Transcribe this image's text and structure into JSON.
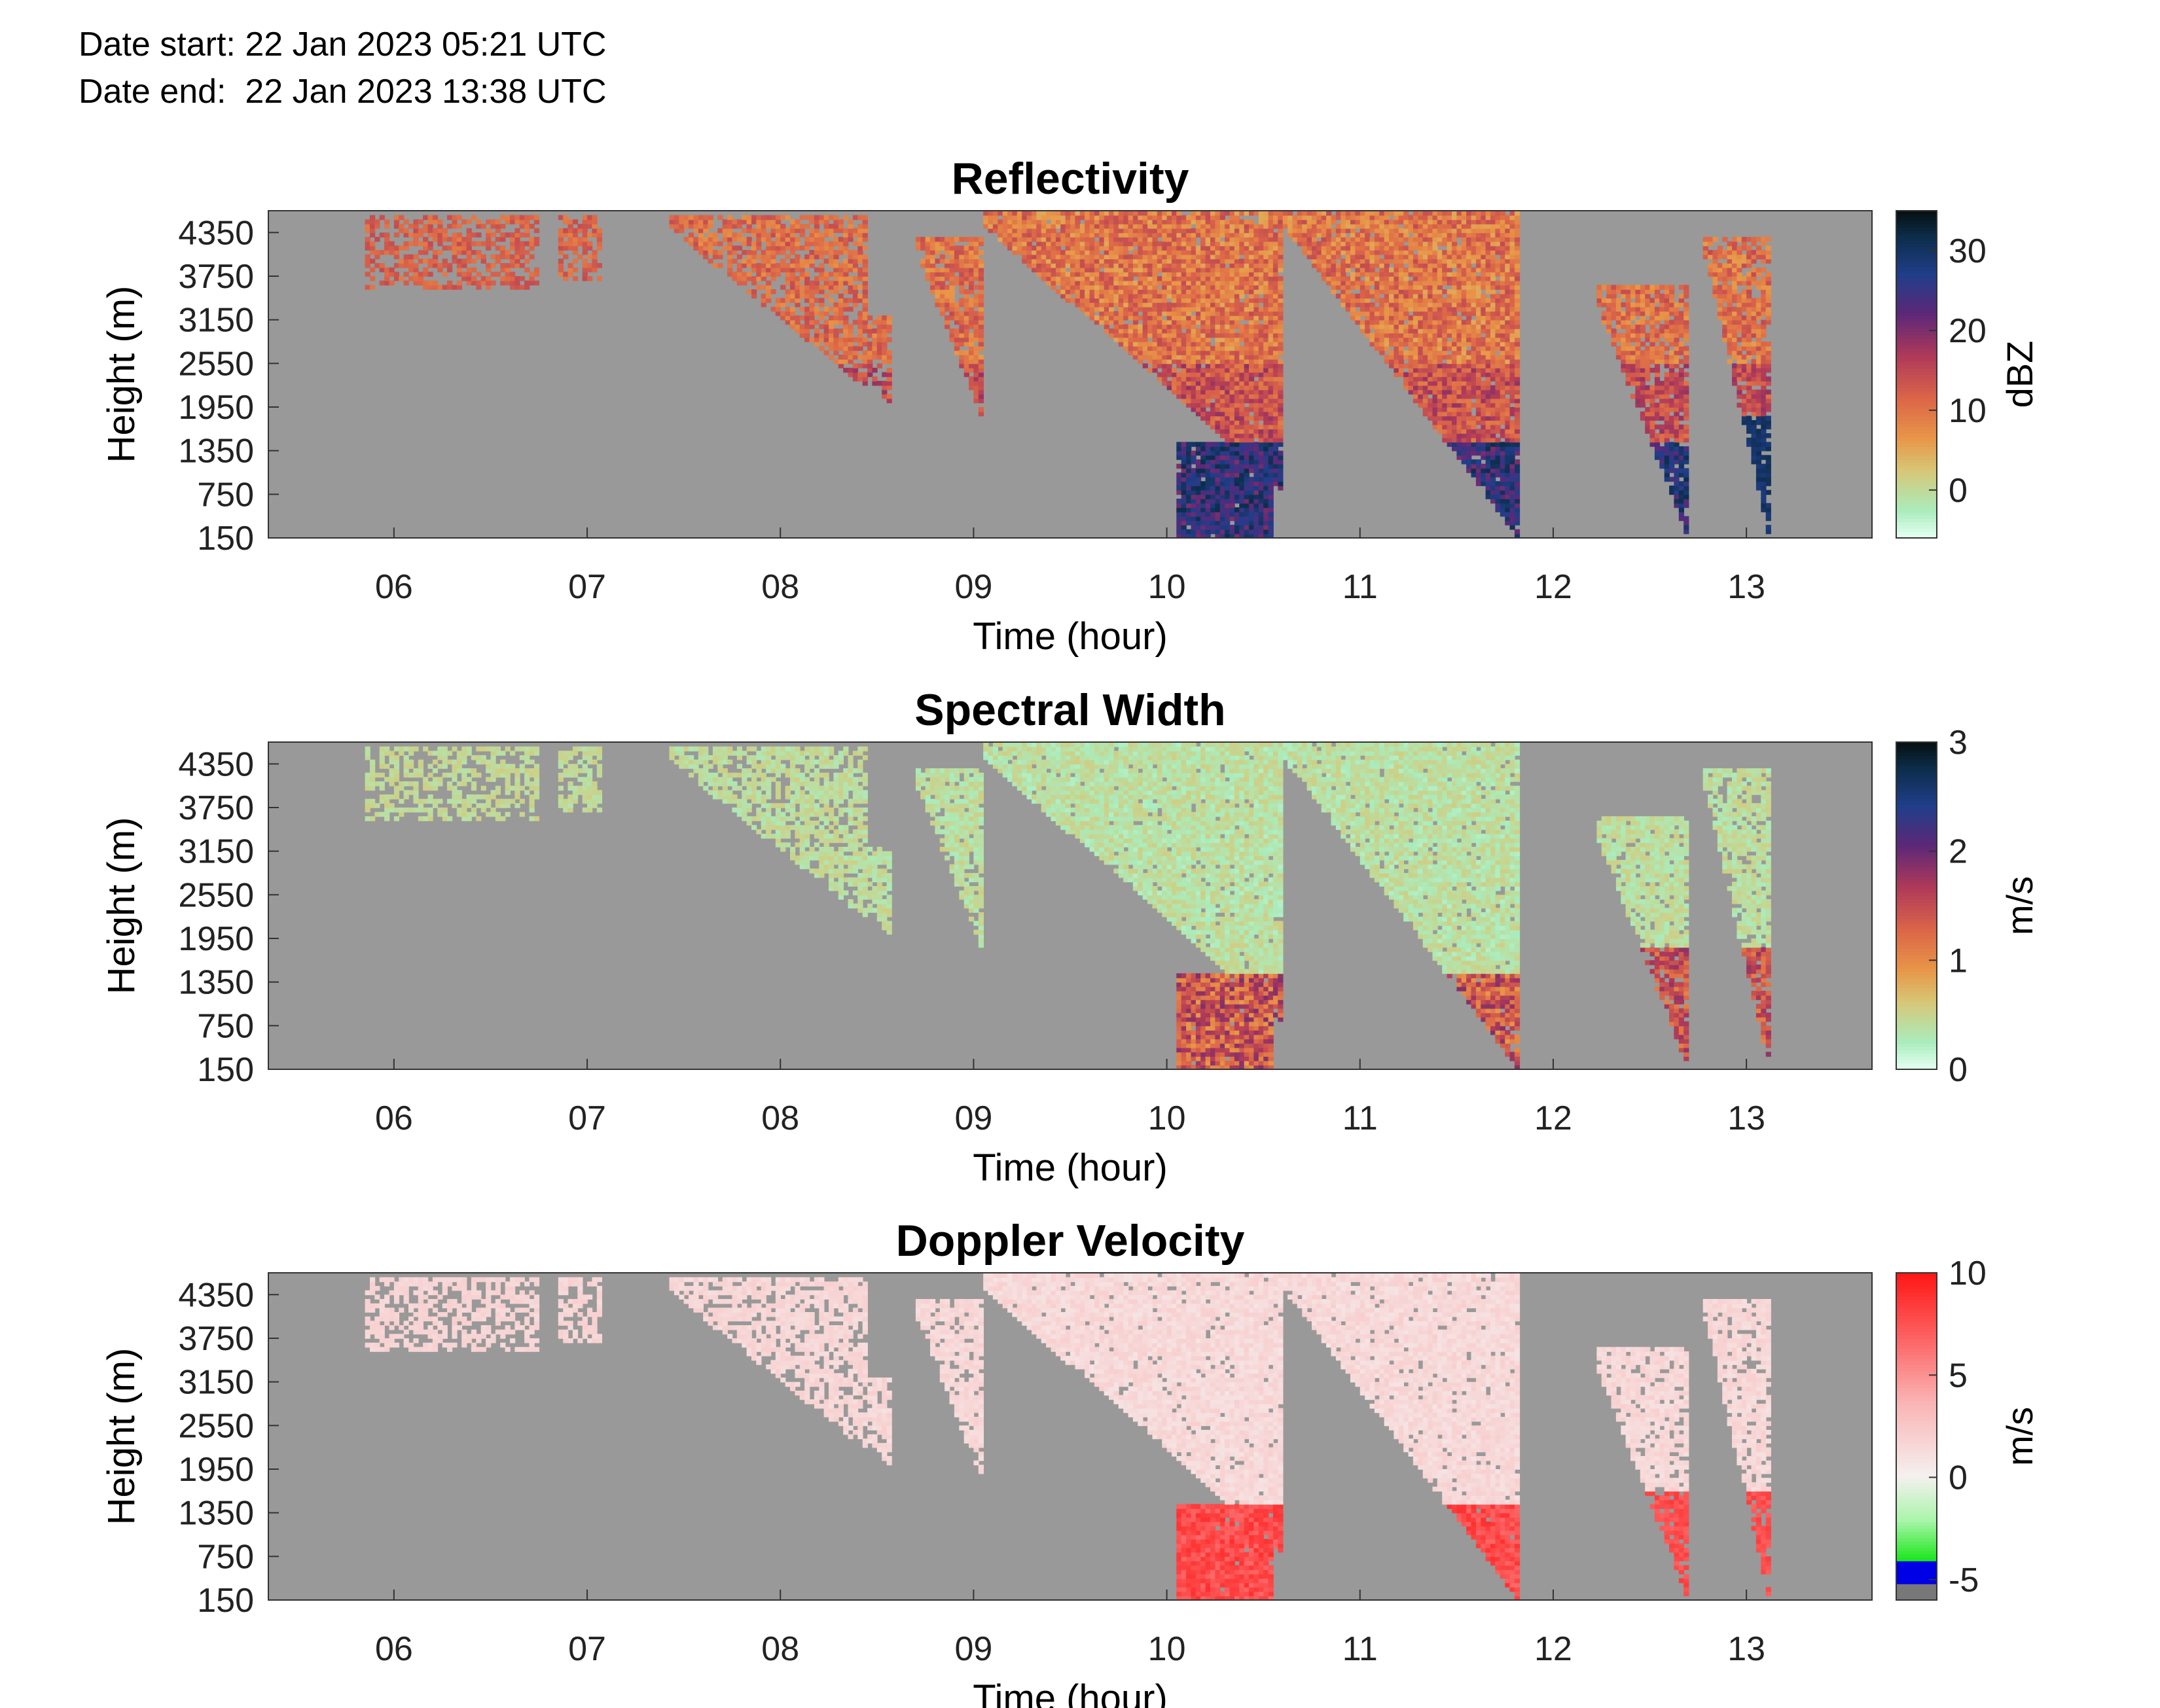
{
  "header": {
    "date_start": "Date start: 22 Jan 2023 05:21 UTC",
    "date_end": "Date end:  22 Jan 2023 13:38 UTC"
  },
  "chart_data": [
    {
      "type": "heatmap",
      "title": "Reflectivity",
      "xlabel": "Time (hour)",
      "ylabel": "Height (m)",
      "x_ticks": [
        "06",
        "07",
        "08",
        "09",
        "10",
        "11",
        "12",
        "13"
      ],
      "y_ticks": [
        "4350",
        "3750",
        "3150",
        "2550",
        "1950",
        "1350",
        "750",
        "150"
      ],
      "xlim": [
        5.35,
        13.65
      ],
      "ylim": [
        150,
        4650
      ],
      "colorbar": {
        "label": "dBZ",
        "ticks": [
          "30",
          "20",
          "10",
          "0"
        ],
        "tick_values": [
          30,
          20,
          10,
          0
        ],
        "range": [
          -6,
          35
        ]
      }
    },
    {
      "type": "heatmap",
      "title": "Spectral Width",
      "xlabel": "Time (hour)",
      "ylabel": "Height (m)",
      "x_ticks": [
        "06",
        "07",
        "08",
        "09",
        "10",
        "11",
        "12",
        "13"
      ],
      "y_ticks": [
        "4350",
        "3750",
        "3150",
        "2550",
        "1950",
        "1350",
        "750",
        "150"
      ],
      "xlim": [
        5.35,
        13.65
      ],
      "ylim": [
        150,
        4650
      ],
      "colorbar": {
        "label": "m/s",
        "ticks": [
          "3",
          "2",
          "1",
          "0"
        ],
        "tick_values": [
          3,
          2,
          1,
          0
        ],
        "range": [
          0,
          3
        ]
      }
    },
    {
      "type": "heatmap",
      "title": "Doppler Velocity",
      "xlabel": "Time (hour)",
      "ylabel": "Height (m)",
      "x_ticks": [
        "06",
        "07",
        "08",
        "09",
        "10",
        "11",
        "12",
        "13"
      ],
      "y_ticks": [
        "4350",
        "3750",
        "3150",
        "2550",
        "1950",
        "1350",
        "750",
        "150"
      ],
      "xlim": [
        5.35,
        13.65
      ],
      "ylim": [
        150,
        4650
      ],
      "colorbar": {
        "label": "m/s",
        "ticks": [
          "10",
          "5",
          "0",
          "-5"
        ],
        "tick_values": [
          10,
          5,
          0,
          -5
        ],
        "range": [
          -6,
          10
        ]
      }
    }
  ]
}
